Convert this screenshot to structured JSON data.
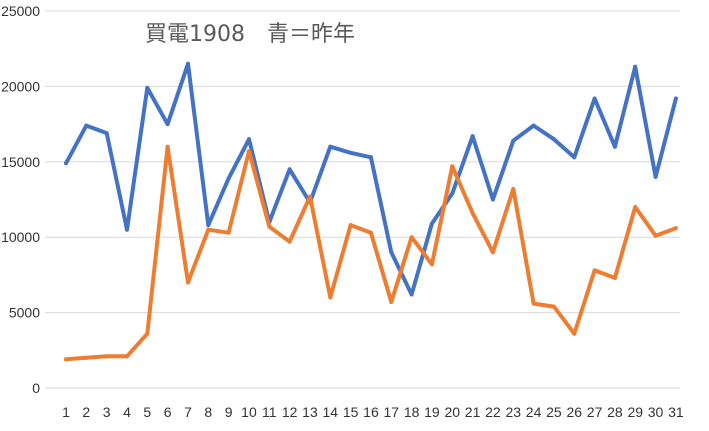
{
  "chart_data": {
    "type": "line",
    "title": "買電1908　青＝昨年",
    "x": [
      "1",
      "2",
      "3",
      "4",
      "5",
      "6",
      "7",
      "8",
      "9",
      "10",
      "11",
      "12",
      "13",
      "14",
      "15",
      "16",
      "17",
      "18",
      "19",
      "20",
      "21",
      "22",
      "23",
      "24",
      "25",
      "26",
      "27",
      "28",
      "29",
      "30",
      "31"
    ],
    "series": [
      {
        "color": "#4472C4",
        "values": [
          14900,
          17400,
          16900,
          10500,
          19900,
          17500,
          21500,
          10800,
          13900,
          16500,
          11000,
          14500,
          12300,
          16000,
          15600,
          15300,
          9000,
          6200,
          10900,
          12900,
          16700,
          12500,
          16400,
          17400,
          16500,
          15300,
          19200,
          16000,
          21300,
          14000,
          19200
        ]
      },
      {
        "color": "#ED7D31",
        "values": [
          1900,
          2000,
          2100,
          2100,
          3600,
          16000,
          7000,
          10500,
          10300,
          15700,
          10700,
          9700,
          12700,
          6000,
          10800,
          10300,
          5700,
          10000,
          8200,
          14700,
          11600,
          9000,
          13200,
          5600,
          5400,
          3600,
          7800,
          7300,
          12000,
          10100,
          10600
        ]
      }
    ],
    "ylim": [
      0,
      25000
    ],
    "yticks": [
      0,
      5000,
      10000,
      15000,
      20000,
      25000
    ],
    "ytick_labels": [
      "0",
      "5000",
      "10000",
      "15000",
      "20000",
      "25000"
    ],
    "grid": true,
    "legend": "none"
  }
}
